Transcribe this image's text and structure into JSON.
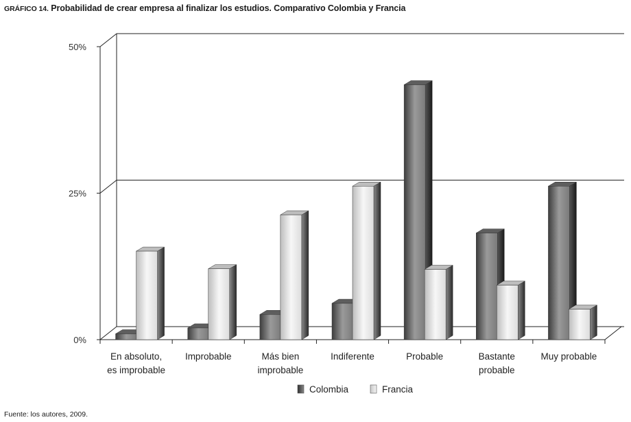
{
  "title_lead": "GRÁFICO 14.",
  "title_text": "Probabilidad de crear empresa al finalizar los estudios. Comparativo Colombia y Francia",
  "source": "Fuente: los autores, 2009.",
  "colors": {
    "colombia": "#4a4a4a",
    "francia": "#e6e6e6"
  },
  "chart_data": {
    "type": "bar",
    "style": "3d-clustered-column",
    "ylim": [
      0,
      50
    ],
    "yticks": [
      {
        "value": 0,
        "label": "0%"
      },
      {
        "value": 25,
        "label": "25%"
      },
      {
        "value": 50,
        "label": "50%"
      }
    ],
    "categories": [
      [
        "En absoluto,",
        "es improbable"
      ],
      [
        "Improbable"
      ],
      [
        "Más bien",
        "improbable"
      ],
      [
        "Indiferente"
      ],
      [
        "Probable"
      ],
      [
        "Bastante",
        "probable"
      ],
      [
        "Muy probable"
      ]
    ],
    "series": [
      {
        "name": "Colombia",
        "values": [
          1,
          2,
          4.3,
          6.2,
          43.5,
          18.2,
          26.2
        ]
      },
      {
        "name": "Francia",
        "values": [
          15.1,
          12.1,
          21.3,
          26.2,
          12,
          9.3,
          5.2
        ]
      }
    ],
    "grid": true,
    "legend": "bottom"
  }
}
